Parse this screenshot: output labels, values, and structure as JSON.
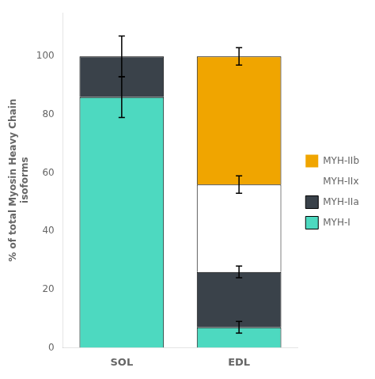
{
  "chart_data": {
    "type": "bar",
    "stacked": true,
    "categories": [
      "SOL",
      "EDL"
    ],
    "ylabel": "% of total Myosin Heavy Chain\nisoforms",
    "ylim": [
      0,
      115
    ],
    "yticks": [
      0,
      20,
      40,
      60,
      80,
      100
    ],
    "grid": false,
    "legend": "right",
    "series": [
      {
        "name": "MYH-I",
        "color": "#4dd9c0",
        "values": [
          86,
          7
        ],
        "errors": [
          7,
          2
        ]
      },
      {
        "name": "MYH-IIa",
        "color": "#3a424a",
        "values": [
          14,
          19
        ],
        "errors": [
          7,
          2
        ]
      },
      {
        "name": "MYH-IIx",
        "color": "#ffffff",
        "values": [
          0,
          30
        ],
        "errors": [
          0,
          3
        ]
      },
      {
        "name": "MYH-IIb",
        "color": "#f0a500",
        "values": [
          0,
          44
        ],
        "errors": [
          0,
          3
        ]
      }
    ]
  }
}
